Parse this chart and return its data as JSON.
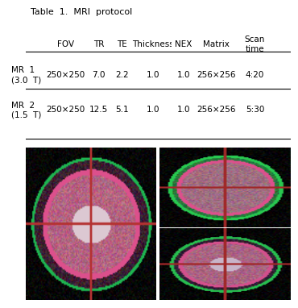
{
  "title": "Table  1.  MRI  protocol",
  "col_labels": [
    "FOV",
    "TR",
    "TE",
    "Thickness",
    "NEX",
    "Matrix",
    "Scan\ntime"
  ],
  "row_labels": [
    "MR  1\n(3.0  T)",
    "MR  2\n(1.5  T)"
  ],
  "table_data": [
    [
      "250×250",
      "7.0",
      "2.2",
      "1.0",
      "1.0",
      "256×256",
      "4:20"
    ],
    [
      "250×250",
      "12.5",
      "5.1",
      "1.0",
      "1.0",
      "256×256",
      "5:30"
    ]
  ],
  "bg_color": "#ffffff",
  "table_text_color": "#000000",
  "image_bg": "#000000"
}
